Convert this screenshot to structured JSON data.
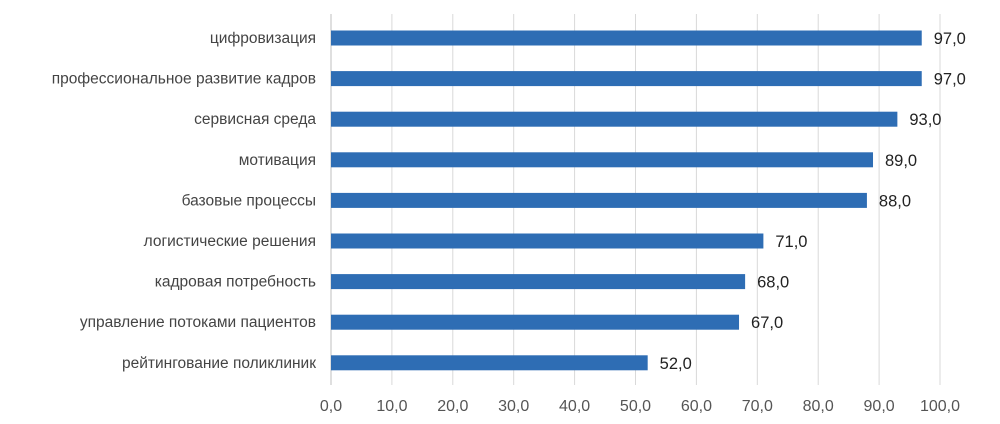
{
  "chart_data": {
    "type": "bar",
    "orientation": "horizontal",
    "categories": [
      "цифровизация",
      "профессиональное развитие кадров",
      "сервисная среда",
      "мотивация",
      "базовые процессы",
      "логистические решения",
      "кадровая потребность",
      "управление потоками пациентов",
      "рейтингование поликлиник"
    ],
    "values": [
      97,
      97,
      93,
      89,
      88,
      71,
      68,
      67,
      52
    ],
    "value_labels": [
      "97,0",
      "97,0",
      "93,0",
      "89,0",
      "88,0",
      "71,0",
      "68,0",
      "67,0",
      "52,0"
    ],
    "xlim": [
      0,
      100
    ],
    "x_ticks": [
      0,
      10,
      20,
      30,
      40,
      50,
      60,
      70,
      80,
      90,
      100
    ],
    "x_tick_labels": [
      "0,0",
      "10,0",
      "20,0",
      "30,0",
      "40,0",
      "50,0",
      "60,0",
      "70,0",
      "80,0",
      "90,0",
      "100,0"
    ],
    "title": "",
    "xlabel": "",
    "ylabel": "",
    "grid": "vertical",
    "legend": "none",
    "colors": {
      "bar": "#2e6db4",
      "grid": "#d9d9d9"
    }
  }
}
